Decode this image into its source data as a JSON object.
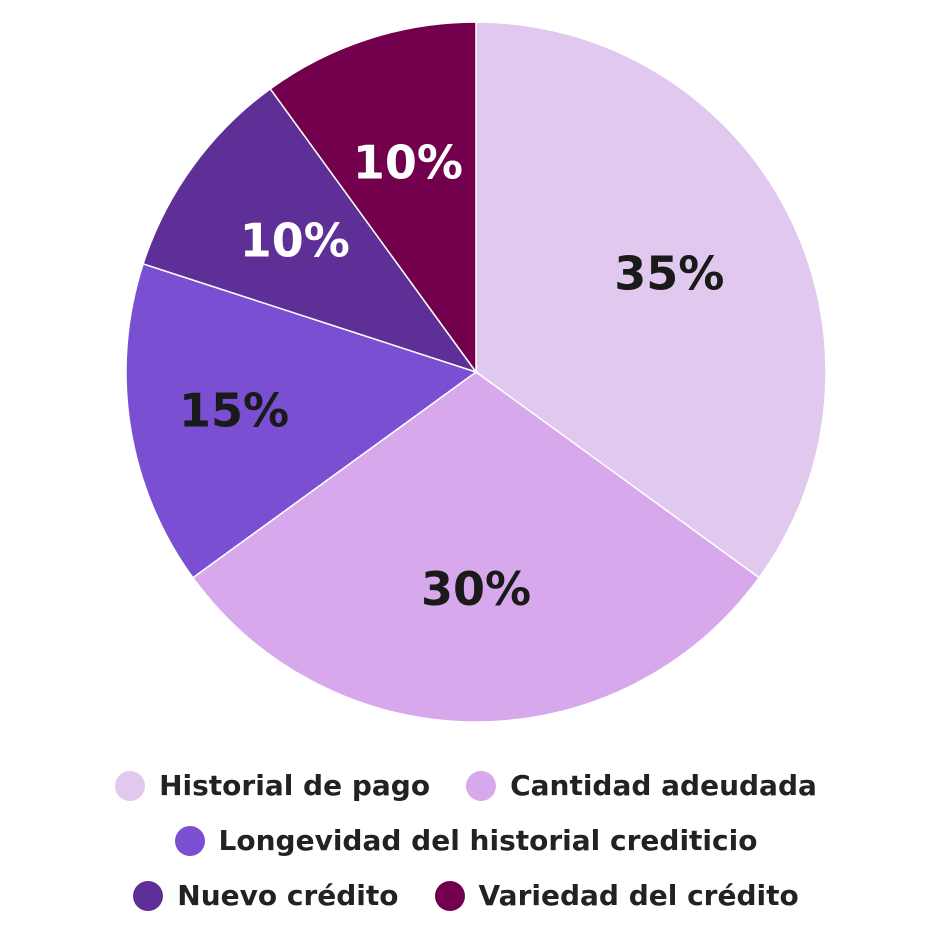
{
  "chart_data": {
    "type": "pie",
    "title": "",
    "slices": [
      {
        "name": "Historial de pago",
        "value": 35,
        "label": "35%",
        "color": "#e0c8ee",
        "label_color": "#1a1a1a"
      },
      {
        "name": "Cantidad adeudada",
        "value": 30,
        "label": "30%",
        "color": "#d8a8ec",
        "label_color": "#1a1a1a"
      },
      {
        "name": "Longevidad del historial crediticio",
        "value": 15,
        "label": "15%",
        "color": "#7a4fd2",
        "label_color": "#1a1a1a"
      },
      {
        "name": "Nuevo crédito",
        "value": 10,
        "label": "10%",
        "color": "#5e2f96",
        "label_color": "#ffffff"
      },
      {
        "name": "Variedad del crédito",
        "value": 10,
        "label": "10%",
        "color": "#72004c",
        "label_color": "#ffffff"
      }
    ],
    "start_angle_deg": 0,
    "direction": "clockwise",
    "legend_position": "bottom",
    "legend": {
      "rows": [
        [
          0,
          1
        ],
        [
          2
        ],
        [
          3,
          4
        ]
      ]
    }
  }
}
